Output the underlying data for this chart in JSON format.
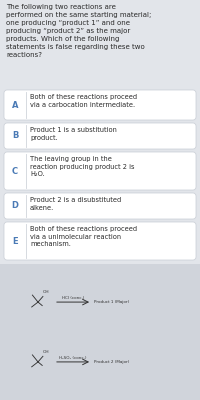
{
  "bg_color": "#e2e5ea",
  "card_bg": "#ffffff",
  "text_color": "#2a2a2a",
  "label_color": "#4a7ab5",
  "header_text": "The following two reactions are\nperformed on the same starting material;\none producing “product 1” and one\nproducing “product 2” as the major\nproducts. Which of the following\nstatements is false regarding these two\nreactions?",
  "options": [
    {
      "label": "A",
      "text": "Both of these reactions proceed\nvia a carbocation intermediate."
    },
    {
      "label": "B",
      "text": "Product 1 is a substitution\nproduct."
    },
    {
      "label": "C",
      "text": "The leaving group in the\nreaction producing product 2 is\nH₂O."
    },
    {
      "label": "D",
      "text": "Product 2 is a disubstituted\nalkene."
    },
    {
      "label": "E",
      "text": "Both of these reactions proceed\nvia a unimolecular reaction\nmechanism."
    }
  ],
  "rxn_bg": "#d0d4db",
  "divider_color": "#d0d4db",
  "border_color": "#c8cdd5"
}
